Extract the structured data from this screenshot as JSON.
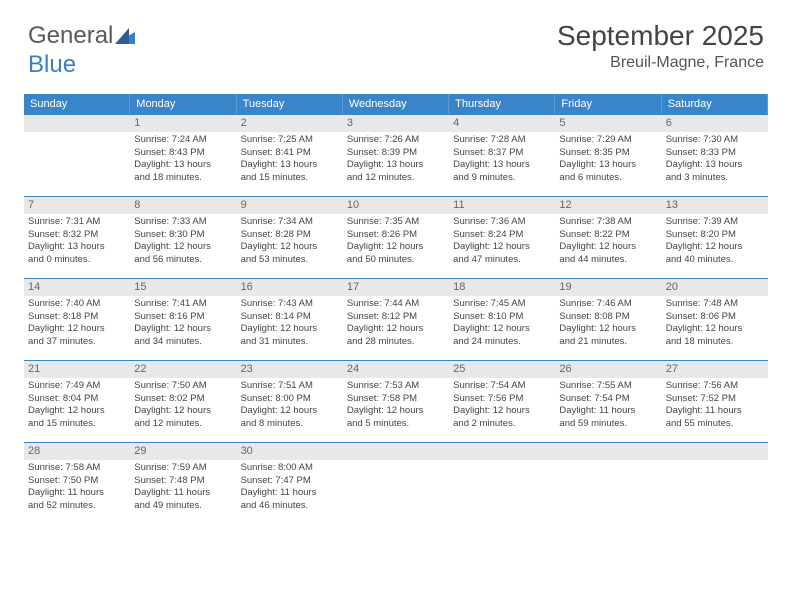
{
  "logo": {
    "text1": "General",
    "text2": "Blue"
  },
  "title": "September 2025",
  "location": "Breuil-Magne, France",
  "colors": {
    "header_bg": "#3a85c9",
    "header_text": "#ffffff",
    "daynum_bg": "#e8e8e8",
    "border": "#3a85c9",
    "logo_gray": "#5a5a5a",
    "logo_blue": "#3a7fc4"
  },
  "day_headers": [
    "Sunday",
    "Monday",
    "Tuesday",
    "Wednesday",
    "Thursday",
    "Friday",
    "Saturday"
  ],
  "weeks": [
    [
      {
        "num": "",
        "sunrise": "",
        "sunset": "",
        "daylight1": "",
        "daylight2": ""
      },
      {
        "num": "1",
        "sunrise": "Sunrise: 7:24 AM",
        "sunset": "Sunset: 8:43 PM",
        "daylight1": "Daylight: 13 hours",
        "daylight2": "and 18 minutes."
      },
      {
        "num": "2",
        "sunrise": "Sunrise: 7:25 AM",
        "sunset": "Sunset: 8:41 PM",
        "daylight1": "Daylight: 13 hours",
        "daylight2": "and 15 minutes."
      },
      {
        "num": "3",
        "sunrise": "Sunrise: 7:26 AM",
        "sunset": "Sunset: 8:39 PM",
        "daylight1": "Daylight: 13 hours",
        "daylight2": "and 12 minutes."
      },
      {
        "num": "4",
        "sunrise": "Sunrise: 7:28 AM",
        "sunset": "Sunset: 8:37 PM",
        "daylight1": "Daylight: 13 hours",
        "daylight2": "and 9 minutes."
      },
      {
        "num": "5",
        "sunrise": "Sunrise: 7:29 AM",
        "sunset": "Sunset: 8:35 PM",
        "daylight1": "Daylight: 13 hours",
        "daylight2": "and 6 minutes."
      },
      {
        "num": "6",
        "sunrise": "Sunrise: 7:30 AM",
        "sunset": "Sunset: 8:33 PM",
        "daylight1": "Daylight: 13 hours",
        "daylight2": "and 3 minutes."
      }
    ],
    [
      {
        "num": "7",
        "sunrise": "Sunrise: 7:31 AM",
        "sunset": "Sunset: 8:32 PM",
        "daylight1": "Daylight: 13 hours",
        "daylight2": "and 0 minutes."
      },
      {
        "num": "8",
        "sunrise": "Sunrise: 7:33 AM",
        "sunset": "Sunset: 8:30 PM",
        "daylight1": "Daylight: 12 hours",
        "daylight2": "and 56 minutes."
      },
      {
        "num": "9",
        "sunrise": "Sunrise: 7:34 AM",
        "sunset": "Sunset: 8:28 PM",
        "daylight1": "Daylight: 12 hours",
        "daylight2": "and 53 minutes."
      },
      {
        "num": "10",
        "sunrise": "Sunrise: 7:35 AM",
        "sunset": "Sunset: 8:26 PM",
        "daylight1": "Daylight: 12 hours",
        "daylight2": "and 50 minutes."
      },
      {
        "num": "11",
        "sunrise": "Sunrise: 7:36 AM",
        "sunset": "Sunset: 8:24 PM",
        "daylight1": "Daylight: 12 hours",
        "daylight2": "and 47 minutes."
      },
      {
        "num": "12",
        "sunrise": "Sunrise: 7:38 AM",
        "sunset": "Sunset: 8:22 PM",
        "daylight1": "Daylight: 12 hours",
        "daylight2": "and 44 minutes."
      },
      {
        "num": "13",
        "sunrise": "Sunrise: 7:39 AM",
        "sunset": "Sunset: 8:20 PM",
        "daylight1": "Daylight: 12 hours",
        "daylight2": "and 40 minutes."
      }
    ],
    [
      {
        "num": "14",
        "sunrise": "Sunrise: 7:40 AM",
        "sunset": "Sunset: 8:18 PM",
        "daylight1": "Daylight: 12 hours",
        "daylight2": "and 37 minutes."
      },
      {
        "num": "15",
        "sunrise": "Sunrise: 7:41 AM",
        "sunset": "Sunset: 8:16 PM",
        "daylight1": "Daylight: 12 hours",
        "daylight2": "and 34 minutes."
      },
      {
        "num": "16",
        "sunrise": "Sunrise: 7:43 AM",
        "sunset": "Sunset: 8:14 PM",
        "daylight1": "Daylight: 12 hours",
        "daylight2": "and 31 minutes."
      },
      {
        "num": "17",
        "sunrise": "Sunrise: 7:44 AM",
        "sunset": "Sunset: 8:12 PM",
        "daylight1": "Daylight: 12 hours",
        "daylight2": "and 28 minutes."
      },
      {
        "num": "18",
        "sunrise": "Sunrise: 7:45 AM",
        "sunset": "Sunset: 8:10 PM",
        "daylight1": "Daylight: 12 hours",
        "daylight2": "and 24 minutes."
      },
      {
        "num": "19",
        "sunrise": "Sunrise: 7:46 AM",
        "sunset": "Sunset: 8:08 PM",
        "daylight1": "Daylight: 12 hours",
        "daylight2": "and 21 minutes."
      },
      {
        "num": "20",
        "sunrise": "Sunrise: 7:48 AM",
        "sunset": "Sunset: 8:06 PM",
        "daylight1": "Daylight: 12 hours",
        "daylight2": "and 18 minutes."
      }
    ],
    [
      {
        "num": "21",
        "sunrise": "Sunrise: 7:49 AM",
        "sunset": "Sunset: 8:04 PM",
        "daylight1": "Daylight: 12 hours",
        "daylight2": "and 15 minutes."
      },
      {
        "num": "22",
        "sunrise": "Sunrise: 7:50 AM",
        "sunset": "Sunset: 8:02 PM",
        "daylight1": "Daylight: 12 hours",
        "daylight2": "and 12 minutes."
      },
      {
        "num": "23",
        "sunrise": "Sunrise: 7:51 AM",
        "sunset": "Sunset: 8:00 PM",
        "daylight1": "Daylight: 12 hours",
        "daylight2": "and 8 minutes."
      },
      {
        "num": "24",
        "sunrise": "Sunrise: 7:53 AM",
        "sunset": "Sunset: 7:58 PM",
        "daylight1": "Daylight: 12 hours",
        "daylight2": "and 5 minutes."
      },
      {
        "num": "25",
        "sunrise": "Sunrise: 7:54 AM",
        "sunset": "Sunset: 7:56 PM",
        "daylight1": "Daylight: 12 hours",
        "daylight2": "and 2 minutes."
      },
      {
        "num": "26",
        "sunrise": "Sunrise: 7:55 AM",
        "sunset": "Sunset: 7:54 PM",
        "daylight1": "Daylight: 11 hours",
        "daylight2": "and 59 minutes."
      },
      {
        "num": "27",
        "sunrise": "Sunrise: 7:56 AM",
        "sunset": "Sunset: 7:52 PM",
        "daylight1": "Daylight: 11 hours",
        "daylight2": "and 55 minutes."
      }
    ],
    [
      {
        "num": "28",
        "sunrise": "Sunrise: 7:58 AM",
        "sunset": "Sunset: 7:50 PM",
        "daylight1": "Daylight: 11 hours",
        "daylight2": "and 52 minutes."
      },
      {
        "num": "29",
        "sunrise": "Sunrise: 7:59 AM",
        "sunset": "Sunset: 7:48 PM",
        "daylight1": "Daylight: 11 hours",
        "daylight2": "and 49 minutes."
      },
      {
        "num": "30",
        "sunrise": "Sunrise: 8:00 AM",
        "sunset": "Sunset: 7:47 PM",
        "daylight1": "Daylight: 11 hours",
        "daylight2": "and 46 minutes."
      },
      {
        "num": "",
        "sunrise": "",
        "sunset": "",
        "daylight1": "",
        "daylight2": ""
      },
      {
        "num": "",
        "sunrise": "",
        "sunset": "",
        "daylight1": "",
        "daylight2": ""
      },
      {
        "num": "",
        "sunrise": "",
        "sunset": "",
        "daylight1": "",
        "daylight2": ""
      },
      {
        "num": "",
        "sunrise": "",
        "sunset": "",
        "daylight1": "",
        "daylight2": ""
      }
    ]
  ]
}
